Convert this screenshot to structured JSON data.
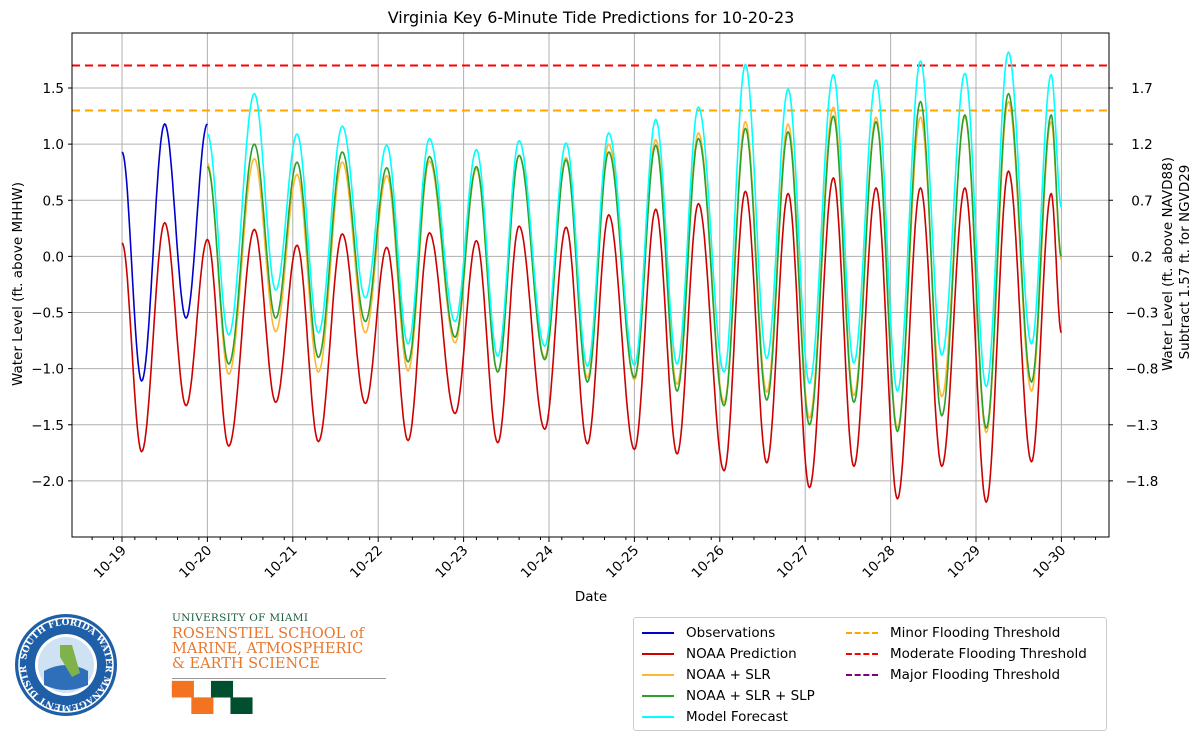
{
  "chart_data": {
    "type": "line",
    "title": "Virginia Key 6-Minute Tide Predictions for 10-20-23",
    "xlabel": "Date",
    "ylabel": "Water Level (ft. above MHHW)",
    "ylabel_right": [
      "Water Level (ft. above NAVD88)",
      "Subtract 1.57 ft. for NGVD29"
    ],
    "x_ticks": [
      "10-19",
      "10-20",
      "10-21",
      "10-22",
      "10-23",
      "10-24",
      "10-25",
      "10-26",
      "10-27",
      "10-28",
      "10-29",
      "10-30"
    ],
    "xlim_days": [
      -0.6,
      11.6
    ],
    "ylim": [
      -2.5,
      1.99
    ],
    "y_ticks": [
      -2.0,
      -1.5,
      -1.0,
      -0.5,
      0.0,
      0.5,
      1.0,
      1.5
    ],
    "y_tick_labels": [
      "−2.0",
      "−1.5",
      "−1.0",
      "−0.5",
      "0.0",
      "0.5",
      "1.0",
      "1.5"
    ],
    "y2_ticks": [
      1.7,
      1.2,
      0.7,
      0.2,
      -0.3,
      -0.8,
      -1.3,
      -1.8
    ],
    "y2_tick_labels": [
      "1.7",
      "1.2",
      "0.7",
      "0.2",
      "−0.3",
      "−0.8",
      "−1.3",
      "−1.8"
    ],
    "y2_offset": 0.2,
    "grid": true,
    "thresholds": [
      {
        "name": "Minor Flooding Threshold",
        "y": 1.3,
        "color": "#ffa500"
      },
      {
        "name": "Moderate Flooding Threshold",
        "y": 1.7,
        "color": "#ff0000"
      },
      {
        "name": "Major Flooding Threshold",
        "y": null,
        "color": "#800080"
      }
    ],
    "series": [
      {
        "name": "Observations",
        "color": "#0000cd",
        "x_days": [
          0.0,
          0.23,
          0.5,
          0.75,
          1.0
        ],
        "extremes": [
          0.93,
          -1.11,
          1.18,
          -0.55,
          1.18
        ]
      },
      {
        "name": "NOAA Prediction",
        "color": "#cc0000",
        "x_days": [
          0.0,
          0.23,
          0.5,
          0.75,
          1.0,
          1.25,
          1.55,
          1.8,
          2.05,
          2.3,
          2.58,
          2.85,
          3.1,
          3.35,
          3.6,
          3.9,
          4.15,
          4.4,
          4.65,
          4.95,
          5.2,
          5.45,
          5.7,
          6.0,
          6.25,
          6.5,
          6.75,
          7.05,
          7.3,
          7.55,
          7.8,
          8.05,
          8.33,
          8.57,
          8.83,
          9.08,
          9.35,
          9.6,
          9.87,
          10.12,
          10.38,
          10.65,
          10.88,
          11.0
        ],
        "extremes": [
          0.12,
          -1.74,
          0.3,
          -1.33,
          0.15,
          -1.69,
          0.24,
          -1.3,
          0.1,
          -1.65,
          0.2,
          -1.31,
          0.08,
          -1.64,
          0.21,
          -1.4,
          0.14,
          -1.66,
          0.27,
          -1.54,
          0.26,
          -1.67,
          0.37,
          -1.72,
          0.42,
          -1.76,
          0.47,
          -1.91,
          0.58,
          -1.84,
          0.56,
          -2.06,
          0.7,
          -1.87,
          0.61,
          -2.16,
          0.61,
          -1.87,
          0.61,
          -2.19,
          0.76,
          -1.83,
          0.56,
          -0.68
        ]
      },
      {
        "name": "NOAA + SLR",
        "color": "#ffb733",
        "x_days": [
          1.0,
          1.25,
          1.55,
          1.8,
          2.05,
          2.3,
          2.58,
          2.85,
          3.1,
          3.35,
          3.6,
          3.9,
          4.15,
          4.4,
          4.65,
          4.95,
          5.2,
          5.45,
          5.7,
          6.0,
          6.25,
          6.5,
          6.75,
          7.05,
          7.3,
          7.55,
          7.8,
          8.05,
          8.33,
          8.57,
          8.83,
          9.08,
          9.35,
          9.6,
          9.87,
          10.12,
          10.38,
          10.65,
          10.88,
          11.0
        ],
        "extremes": [
          0.83,
          -1.05,
          0.87,
          -0.67,
          0.73,
          -1.03,
          0.84,
          -0.68,
          0.72,
          -1.02,
          0.85,
          -0.77,
          0.78,
          -1.03,
          0.9,
          -0.9,
          0.88,
          -1.08,
          1.0,
          -1.1,
          1.04,
          -1.14,
          1.1,
          -1.3,
          1.2,
          -1.21,
          1.18,
          -1.44,
          1.33,
          -1.24,
          1.24,
          -1.53,
          1.24,
          -1.25,
          1.24,
          -1.57,
          1.38,
          -1.2,
          1.2,
          -0.03
        ]
      },
      {
        "name": "NOAA + SLR + SLP",
        "color": "#2ca02c",
        "x_days": [
          1.0,
          1.25,
          1.55,
          1.8,
          2.05,
          2.3,
          2.58,
          2.85,
          3.1,
          3.35,
          3.6,
          3.9,
          4.15,
          4.4,
          4.65,
          4.95,
          5.2,
          5.45,
          5.7,
          6.0,
          6.25,
          6.5,
          6.75,
          7.05,
          7.3,
          7.55,
          7.8,
          8.05,
          8.33,
          8.57,
          8.83,
          9.08,
          9.35,
          9.6,
          9.87,
          10.12,
          10.38,
          10.65,
          10.88,
          11.0
        ],
        "extremes": [
          0.8,
          -0.96,
          1.0,
          -0.55,
          0.84,
          -0.9,
          0.93,
          -0.58,
          0.79,
          -0.94,
          0.89,
          -0.72,
          0.8,
          -1.03,
          0.9,
          -0.92,
          0.86,
          -1.12,
          0.93,
          -1.08,
          0.99,
          -1.2,
          1.05,
          -1.33,
          1.14,
          -1.28,
          1.11,
          -1.5,
          1.25,
          -1.3,
          1.2,
          -1.56,
          1.38,
          -1.42,
          1.26,
          -1.53,
          1.45,
          -1.12,
          1.26,
          0.0
        ]
      },
      {
        "name": "Model Forecast",
        "color": "#00ffff",
        "x_days": [
          1.0,
          1.25,
          1.55,
          1.8,
          2.05,
          2.3,
          2.58,
          2.85,
          3.1,
          3.35,
          3.6,
          3.9,
          4.15,
          4.4,
          4.65,
          4.95,
          5.2,
          5.45,
          5.7,
          6.0,
          6.25,
          6.5,
          6.75,
          7.05,
          7.3,
          7.55,
          7.8,
          8.05,
          8.33,
          8.57,
          8.83,
          9.08,
          9.35,
          9.6,
          9.87,
          10.12,
          10.38,
          10.65,
          10.88,
          11.0
        ],
        "extremes": [
          1.09,
          -0.7,
          1.45,
          -0.3,
          1.09,
          -0.68,
          1.16,
          -0.37,
          0.99,
          -0.78,
          1.05,
          -0.58,
          0.95,
          -0.89,
          1.03,
          -0.8,
          1.01,
          -0.98,
          1.1,
          -0.97,
          1.22,
          -0.96,
          1.33,
          -1.03,
          1.71,
          -0.91,
          1.49,
          -1.13,
          1.62,
          -0.95,
          1.57,
          -1.2,
          1.74,
          -0.88,
          1.63,
          -1.16,
          1.82,
          -0.78,
          1.62,
          0.44
        ]
      }
    ]
  },
  "logos": {
    "sfwmd_text": "SOUTH FLORIDA WATER MANAGEMENT DISTRICT",
    "um_university": "UNIVERSITY OF MIAMI",
    "um_school": [
      "ROSENSTIEL SCHOOL of",
      "MARINE, ATMOSPHERIC",
      "& EARTH SCIENCE"
    ]
  }
}
